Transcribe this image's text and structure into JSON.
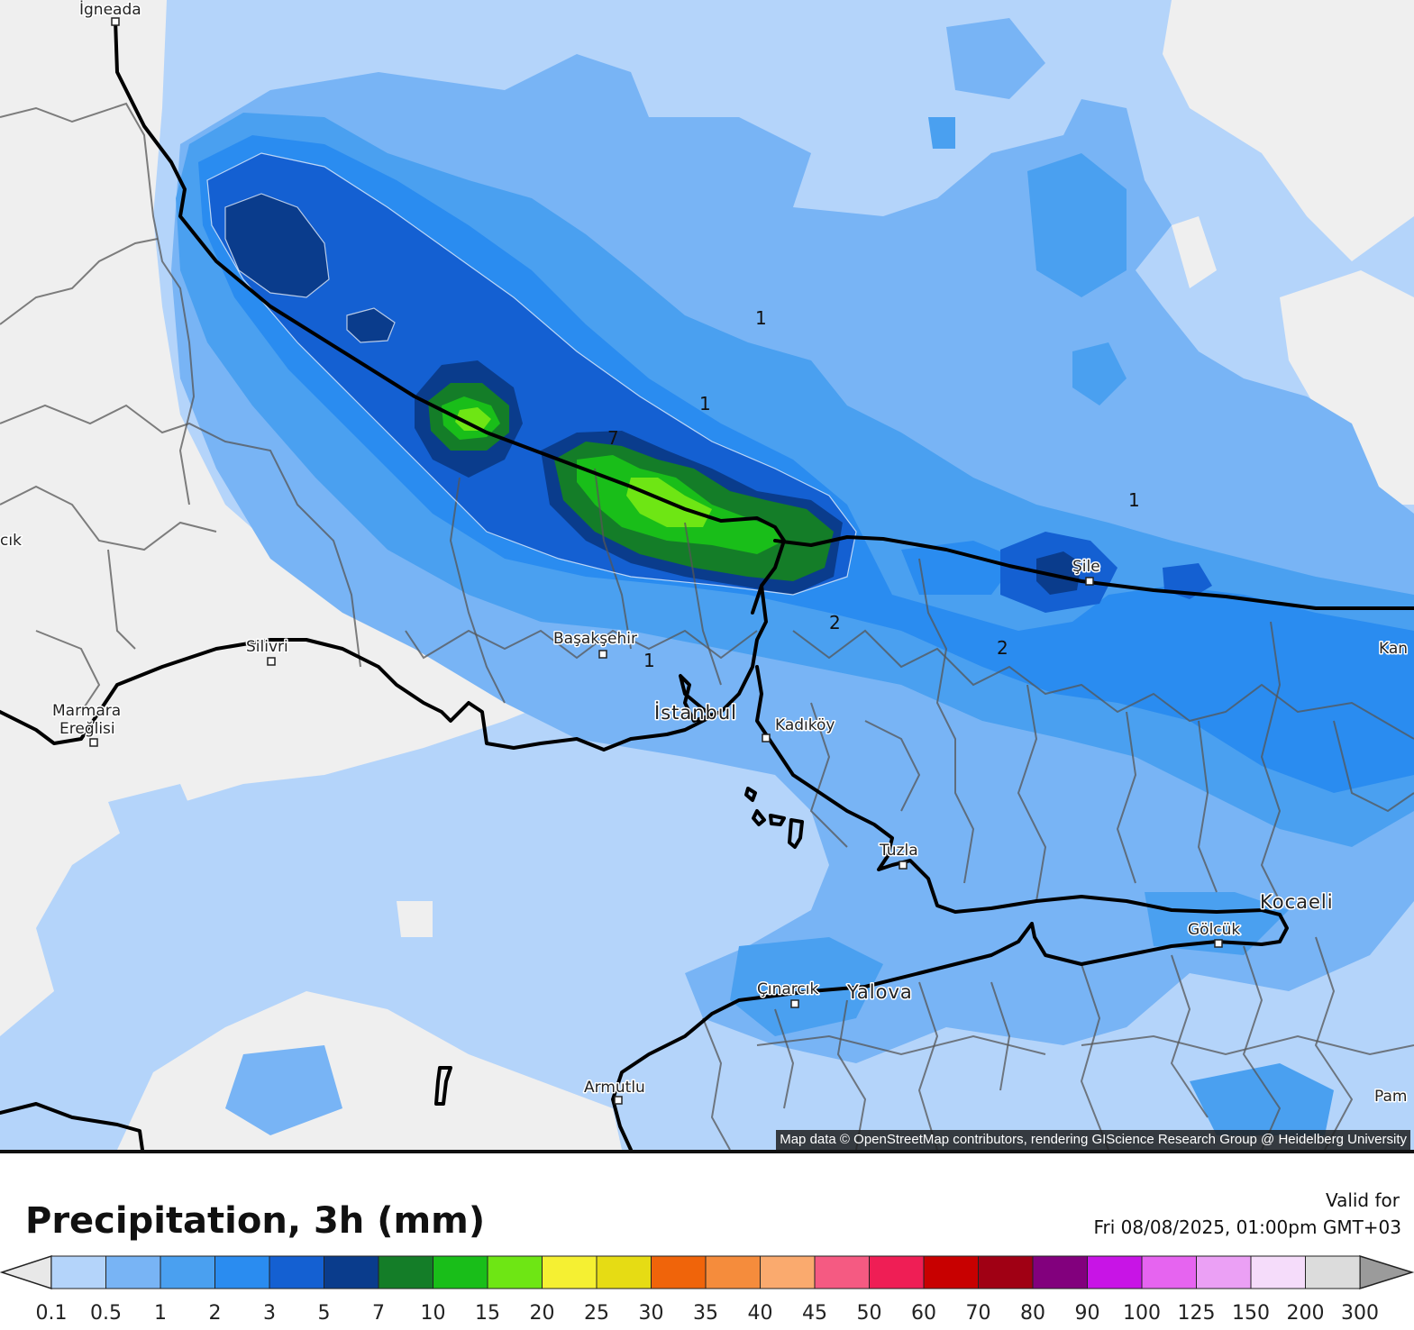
{
  "map": {
    "places": [
      {
        "id": "igneada",
        "label": "İgneada"
      },
      {
        "id": "silivri",
        "label": "Silivri"
      },
      {
        "id": "marmara-ereglisi",
        "label": "Marmara\nEreğlisi"
      },
      {
        "id": "basaksehir",
        "label": "Başakşehir"
      },
      {
        "id": "istanbul",
        "label": "İstanbul"
      },
      {
        "id": "kadikoy",
        "label": "Kadıköy"
      },
      {
        "id": "sile",
        "label": "Şile"
      },
      {
        "id": "tuzla",
        "label": "Tuzla"
      },
      {
        "id": "kocaeli",
        "label": "Kocaeli"
      },
      {
        "id": "golcuk",
        "label": "Gölcük"
      },
      {
        "id": "cinarcik",
        "label": "Çınarcık"
      },
      {
        "id": "yalova",
        "label": "Yalova"
      },
      {
        "id": "armutlu",
        "label": "Armutlu"
      },
      {
        "id": "kan",
        "label": "Kan"
      },
      {
        "id": "pam",
        "label": "Pam"
      },
      {
        "id": "cik",
        "label": "cık"
      }
    ],
    "contour_labels": [
      "1",
      "1",
      "1",
      "1",
      "2",
      "2",
      "7"
    ],
    "attribution": "Map data © OpenStreetMap contributors, rendering GIScience Research Group @ Heidelberg University"
  },
  "legend": {
    "title": "Precipitation, 3h (mm)",
    "valid_label": "Valid for",
    "valid_time": "Fri 08/08/2025, 01:00pm GMT+03",
    "ticks": [
      "0.1",
      "0.5",
      "1",
      "2",
      "3",
      "5",
      "7",
      "10",
      "15",
      "20",
      "25",
      "30",
      "35",
      "40",
      "45",
      "50",
      "60",
      "70",
      "80",
      "90",
      "100",
      "125",
      "150",
      "200",
      "300"
    ],
    "colors": [
      "#b4d4fa",
      "#78b4f5",
      "#4aa0f0",
      "#2a8cf0",
      "#1460d2",
      "#0a3c8c",
      "#147d28",
      "#19be19",
      "#6ee614",
      "#f5f032",
      "#e6dc14",
      "#f0640a",
      "#f58c3c",
      "#faaa6e",
      "#f55a82",
      "#ef1e55",
      "#c80000",
      "#a00014",
      "#82007d",
      "#c814e6",
      "#e664f0",
      "#eba0f5",
      "#f5dcfa",
      "#dcdcdc"
    ],
    "low_color": "#e8e8e8",
    "high_color": "#9b9b9b"
  }
}
